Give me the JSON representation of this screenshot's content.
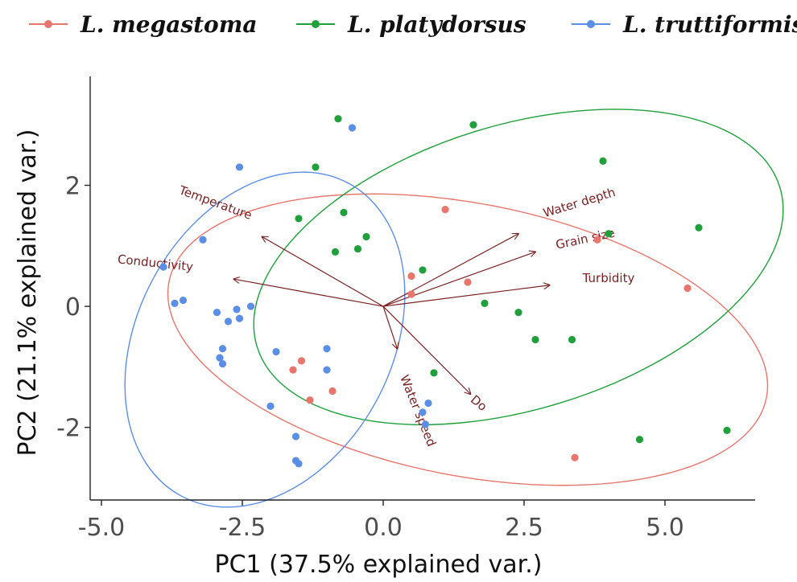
{
  "chart_data": {
    "type": "scatter",
    "xlabel": "PC1 (37.5% explained var.)",
    "ylabel": "PC2 (21.1% explained var.)",
    "xlim": [
      -5.2,
      6.6
    ],
    "ylim": [
      -3.2,
      3.8
    ],
    "x_ticks": [
      {
        "value": -5.0,
        "label": "-5.0"
      },
      {
        "value": -2.5,
        "label": "-2.5"
      },
      {
        "value": 0.0,
        "label": "0.0"
      },
      {
        "value": 2.5,
        "label": "2.5"
      },
      {
        "value": 5.0,
        "label": "5.0"
      }
    ],
    "y_ticks": [
      {
        "value": -2,
        "label": "-2"
      },
      {
        "value": 0,
        "label": "0"
      },
      {
        "value": 2,
        "label": "2"
      }
    ],
    "grid": false,
    "legend_position": "top",
    "series": [
      {
        "name": "L. megastoma",
        "color": "#E8766D",
        "points": [
          [
            1.1,
            1.6
          ],
          [
            0.5,
            0.5
          ],
          [
            0.5,
            0.2
          ],
          [
            1.5,
            0.4
          ],
          [
            3.8,
            1.1
          ],
          [
            5.4,
            0.3
          ],
          [
            -1.6,
            -1.05
          ],
          [
            -1.45,
            -0.9
          ],
          [
            -1.3,
            -1.55
          ],
          [
            -0.9,
            -1.4
          ],
          [
            3.4,
            -2.5
          ]
        ],
        "ellipse": {
          "center": [
            1.5,
            -0.55
          ],
          "rx": 5.4,
          "ry": 2.25,
          "angle_deg": 11
        }
      },
      {
        "name": "L. platydorsus",
        "color": "#1FA03A",
        "points": [
          [
            -0.8,
            3.1
          ],
          [
            1.6,
            3.0
          ],
          [
            -1.2,
            2.3
          ],
          [
            3.9,
            2.4
          ],
          [
            -1.5,
            1.45
          ],
          [
            -0.7,
            1.55
          ],
          [
            5.6,
            1.3
          ],
          [
            4.0,
            1.2
          ],
          [
            -0.3,
            1.15
          ],
          [
            -0.45,
            0.95
          ],
          [
            -0.85,
            0.9
          ],
          [
            0.7,
            0.6
          ],
          [
            1.8,
            0.05
          ],
          [
            2.4,
            -0.1
          ],
          [
            2.7,
            -0.55
          ],
          [
            3.35,
            -0.55
          ],
          [
            0.9,
            -1.1
          ],
          [
            4.55,
            -2.2
          ],
          [
            6.1,
            -2.05
          ]
        ],
        "ellipse": {
          "center": [
            2.4,
            0.65
          ],
          "rx": 4.85,
          "ry": 2.35,
          "angle_deg": -17
        }
      },
      {
        "name": "L. truttiformis",
        "color": "#5B8EE6",
        "points": [
          [
            -0.55,
            2.95
          ],
          [
            -2.55,
            2.3
          ],
          [
            -3.2,
            1.1
          ],
          [
            -3.9,
            0.65
          ],
          [
            -3.7,
            0.05
          ],
          [
            -3.55,
            0.1
          ],
          [
            -2.95,
            -0.1
          ],
          [
            -2.6,
            -0.05
          ],
          [
            -2.35,
            0.0
          ],
          [
            -2.75,
            -0.25
          ],
          [
            -2.55,
            -0.2
          ],
          [
            -2.85,
            -0.7
          ],
          [
            -2.9,
            -0.85
          ],
          [
            -2.85,
            -0.95
          ],
          [
            -1.9,
            -0.75
          ],
          [
            -1.0,
            -0.7
          ],
          [
            -1.0,
            -1.05
          ],
          [
            -2.0,
            -1.65
          ],
          [
            -1.55,
            -2.15
          ],
          [
            -1.5,
            -2.6
          ],
          [
            -1.55,
            -2.55
          ],
          [
            0.8,
            -1.6
          ],
          [
            0.7,
            -1.75
          ],
          [
            0.75,
            -1.95
          ]
        ],
        "ellipse": {
          "center": [
            -2.1,
            -0.55
          ],
          "rx": 3.15,
          "ry": 2.1,
          "angle_deg": -62
        }
      }
    ],
    "loadings": [
      {
        "label": "Water depth",
        "x": 2.4,
        "y": 1.2,
        "label_x": 3.5,
        "label_y": 1.65,
        "rotate": -17
      },
      {
        "label": "Grain size",
        "x": 2.7,
        "y": 0.9,
        "label_x": 3.6,
        "label_y": 1.05,
        "rotate": -12
      },
      {
        "label": "Turbidity",
        "x": 2.95,
        "y": 0.35,
        "label_x": 4.0,
        "label_y": 0.4,
        "rotate": 0
      },
      {
        "label": "Temperature",
        "x": -2.15,
        "y": 1.15,
        "label_x": -3.0,
        "label_y": 1.65,
        "rotate": 20
      },
      {
        "label": "Conductivity",
        "x": -2.65,
        "y": 0.45,
        "label_x": -4.05,
        "label_y": 0.65,
        "rotate": 6
      },
      {
        "label": "Water speed",
        "x": 0.25,
        "y": -0.7,
        "label_x": 0.55,
        "label_y": -1.75,
        "rotate": 68
      },
      {
        "label": "Do",
        "x": 1.55,
        "y": -1.45,
        "label_x": 1.65,
        "label_y": -1.65,
        "rotate": 40
      }
    ],
    "loading_color": "#7a1f1f"
  }
}
